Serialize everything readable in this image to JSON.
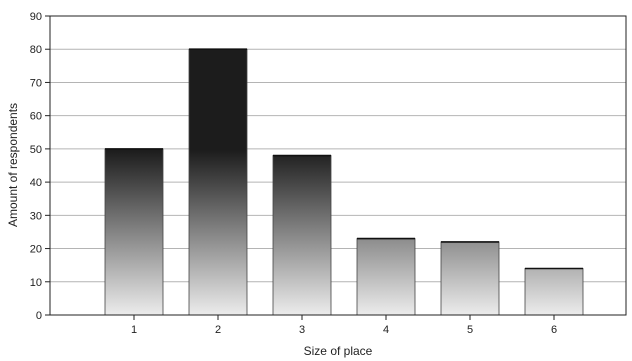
{
  "chart_data": {
    "type": "bar",
    "title": "",
    "xlabel": "Size of place",
    "ylabel": "Amount of respondents",
    "categories": [
      "1",
      "2",
      "3",
      "4",
      "5",
      "6"
    ],
    "values": [
      50,
      80,
      48,
      23,
      22,
      14
    ],
    "ylim": [
      0,
      90
    ],
    "yticks": [
      0,
      10,
      20,
      30,
      40,
      50,
      60,
      70,
      80,
      90
    ],
    "grid": true,
    "legend": "none"
  }
}
